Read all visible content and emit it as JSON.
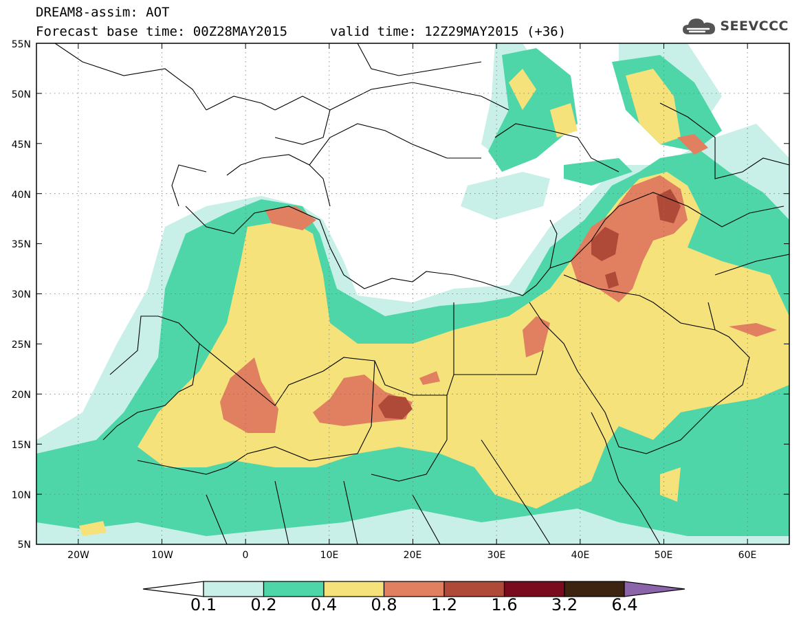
{
  "header": {
    "title_line1": "DREAM8-assim: AOT",
    "title_line2": "Forecast base time: 00Z28MAY2015",
    "valid_time": "valid time: 12Z29MAY2015 (+36)",
    "logo_text": "SEEVCCC",
    "logo_icon": "cloud-icon"
  },
  "map": {
    "lat_labels": [
      "55N",
      "50N",
      "45N",
      "40N",
      "35N",
      "30N",
      "25N",
      "20N",
      "15N",
      "10N",
      "5N"
    ],
    "lon_labels": [
      "20W",
      "10W",
      "0",
      "10E",
      "20E",
      "30E",
      "40E",
      "50E",
      "60E"
    ],
    "lat_range": [
      5,
      55
    ],
    "lon_range": [
      -25,
      65
    ]
  },
  "colorbar": {
    "levels": [
      "0.1",
      "0.2",
      "0.4",
      "0.8",
      "1.2",
      "1.6",
      "3.2",
      "6.4"
    ],
    "colors": [
      "#c8f0e8",
      "#4ed6a8",
      "#f5e27a",
      "#e08060",
      "#b04a38",
      "#7a0a1e",
      "#3d2410",
      "#8c64aa"
    ]
  }
}
